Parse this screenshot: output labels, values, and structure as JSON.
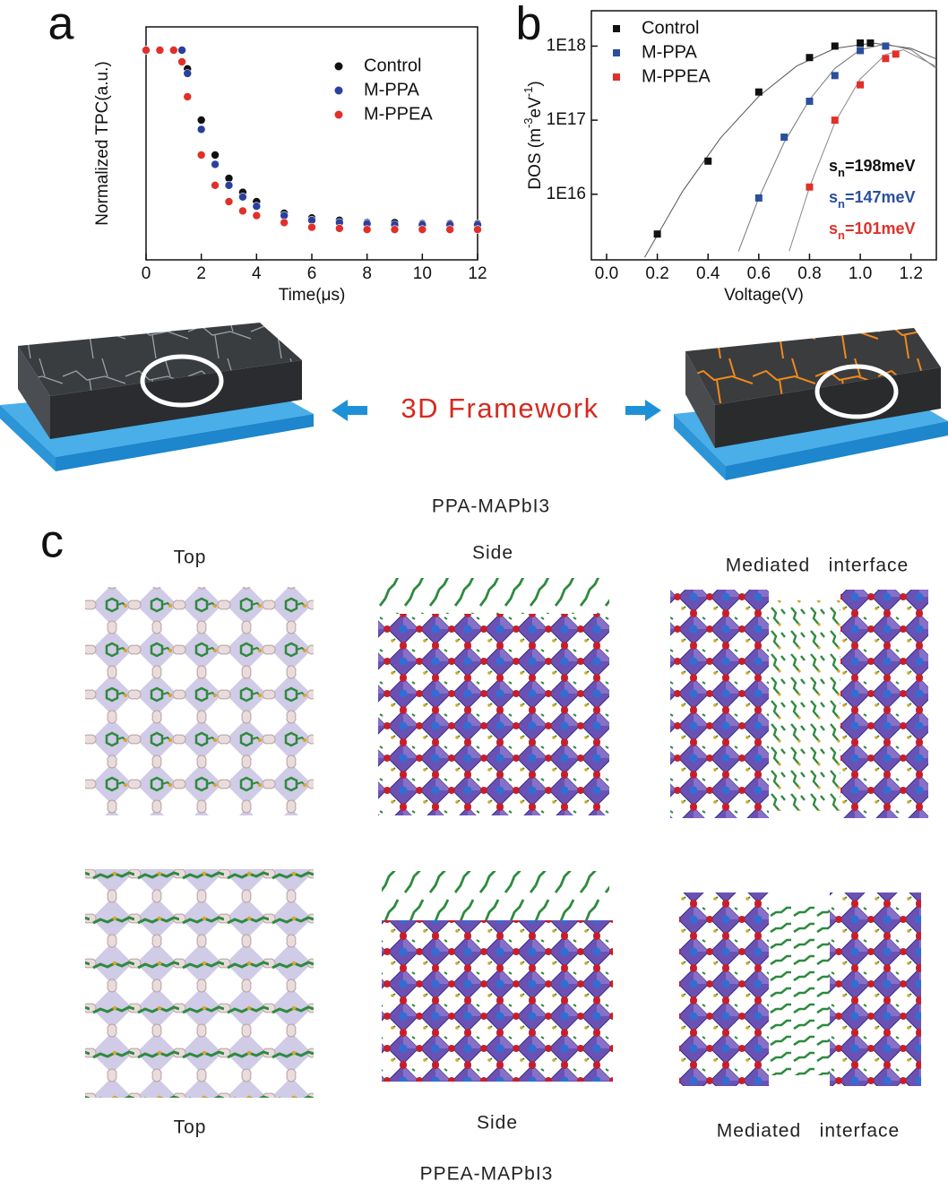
{
  "chart_data": [
    {
      "type": "scatter",
      "label": "a",
      "x_label": "Time(μs)",
      "y_label": "Normalized TPC(a.u.)",
      "xlim": [
        0,
        12
      ],
      "xticks": [
        0,
        2,
        4,
        6,
        8,
        10,
        12
      ],
      "ylim": [
        0,
        1
      ],
      "marker": "circle",
      "series": [
        {
          "name": "Control",
          "color": "#111111",
          "x": [
            0,
            0.5,
            1,
            1.3,
            1.5,
            2,
            2.5,
            3,
            3.5,
            4,
            5,
            6,
            7,
            8,
            9,
            10,
            11,
            12
          ],
          "values": [
            0.9,
            0.9,
            0.9,
            0.9,
            0.82,
            0.6,
            0.45,
            0.35,
            0.29,
            0.25,
            0.2,
            0.18,
            0.17,
            0.16,
            0.16,
            0.155,
            0.155,
            0.155
          ]
        },
        {
          "name": "M-PPA",
          "color": "#2a3f9e",
          "x": [
            0,
            0.5,
            1,
            1.3,
            1.5,
            2,
            2.5,
            3,
            3.5,
            4,
            5,
            6,
            7,
            8,
            9,
            10,
            11,
            12
          ],
          "values": [
            0.9,
            0.9,
            0.9,
            0.9,
            0.8,
            0.56,
            0.41,
            0.32,
            0.27,
            0.23,
            0.19,
            0.17,
            0.16,
            0.155,
            0.15,
            0.15,
            0.15,
            0.15
          ]
        },
        {
          "name": "M-PPEA",
          "color": "#e0302a",
          "x": [
            0,
            0.5,
            1,
            1.3,
            1.5,
            2,
            2.5,
            3,
            3.5,
            4,
            5,
            6,
            7,
            8,
            9,
            10,
            11,
            12
          ],
          "values": [
            0.9,
            0.9,
            0.9,
            0.85,
            0.7,
            0.45,
            0.32,
            0.25,
            0.21,
            0.19,
            0.16,
            0.14,
            0.135,
            0.13,
            0.13,
            0.13,
            0.13,
            0.13
          ]
        }
      ]
    },
    {
      "type": "scatter",
      "label": "b",
      "x_label": "Voltage(V)",
      "y_label": [
        "DOS (m",
        "-3",
        "eV",
        "-1",
        ")"
      ],
      "log_y": true,
      "xlim": [
        -0.06,
        1.3
      ],
      "xticks": [
        {
          "value": 0,
          "label": "0.0"
        },
        0.2,
        0.4,
        0.6,
        0.8,
        {
          "value": 1,
          "label": "1.0"
        },
        1.2
      ],
      "ylim": [
        1300000000000000.0,
        3e+18
      ],
      "yticks": [
        {
          "value": 1e+16,
          "label": "1E16"
        },
        {
          "value": 1e+17,
          "label": "1E17"
        },
        {
          "value": 1e+18,
          "label": "1E18"
        }
      ],
      "marker": "square",
      "series": [
        {
          "name": "Control",
          "color": "#111111",
          "x": [
            0.2,
            0.4,
            0.6,
            0.8,
            0.9,
            1.0,
            1.04
          ],
          "values": [
            2900000000000000.0,
            2.8e+16,
            2.4e+17,
            7e+17,
            1e+18,
            1.1e+18,
            1.1e+18
          ]
        },
        {
          "name": "M-PPA",
          "color": "#2a4f9e",
          "x": [
            0.6,
            0.7,
            0.8,
            0.9,
            1.0,
            1.1
          ],
          "values": [
            8900000000000000.0,
            5.9e+16,
            1.8e+17,
            4e+17,
            8.7e+17,
            1e+18
          ]
        },
        {
          "name": "M-PPEA",
          "color": "#e0302a",
          "x": [
            0.8,
            0.9,
            1.0,
            1.1,
            1.14
          ],
          "values": [
            1.25e+16,
            1e+17,
            3e+17,
            6.8e+17,
            7.8e+17
          ]
        }
      ],
      "fits": [
        {
          "color": "#555555",
          "x": [
            0.15,
            0.3,
            0.45,
            0.6,
            0.75,
            0.9,
            1.05,
            1.2,
            1.3
          ],
          "values": [
            1400000000000000.0,
            1.1e+16,
            5.8e+16,
            2.1e+17,
            5.4e+17,
            9.3e+17,
            1.1e+18,
            9.3e+17,
            6.7e+17
          ]
        },
        {
          "color": "#777777",
          "x": [
            0.52,
            0.6,
            0.7,
            0.8,
            0.9,
            1.0,
            1.1,
            1.2,
            1.3
          ],
          "values": [
            1700000000000000.0,
            8900000000000000.0,
            5e+16,
            1.9e+17,
            5e+17,
            8.9e+17,
            1.07e+18,
            8.9e+17,
            5e+17
          ]
        },
        {
          "color": "#888888",
          "x": [
            0.72,
            0.8,
            0.9,
            1.0,
            1.1,
            1.17,
            1.3
          ],
          "values": [
            1700000000000000.0,
            1.25e+16,
            9.3e+16,
            3.6e+17,
            7.7e+17,
            8.9e+17,
            5.3e+17
          ]
        }
      ],
      "annotations": [
        {
          "parts": [
            "s",
            "n",
            "=198meV"
          ],
          "color": "#111111"
        },
        {
          "parts": [
            "s",
            "n",
            "=147meV"
          ],
          "color": "#2a4f9e"
        },
        {
          "parts": [
            "s",
            "n",
            "=101meV"
          ],
          "color": "#e0302a"
        }
      ]
    }
  ],
  "framework": {
    "label": "3D Framework",
    "caption": "PPA-MAPbI3"
  },
  "panel_c": {
    "letter": "c",
    "top_row": [
      "Top",
      "Side",
      "Mediated   interface"
    ],
    "bottom_row": [
      "Top",
      "Side",
      "Mediated   interface"
    ],
    "caption": "PPEA-MAPbI3"
  }
}
